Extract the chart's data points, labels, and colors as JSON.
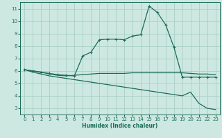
{
  "xlabel": "Humidex (Indice chaleur)",
  "background_color": "#cde8e0",
  "grid_color": "#aacfc5",
  "line_color": "#1a6b58",
  "xlim": [
    -0.5,
    23.5
  ],
  "ylim": [
    2.5,
    11.5
  ],
  "xticks": [
    0,
    1,
    2,
    3,
    4,
    5,
    6,
    7,
    8,
    9,
    10,
    11,
    12,
    13,
    14,
    15,
    16,
    17,
    18,
    19,
    20,
    21,
    22,
    23
  ],
  "yticks": [
    3,
    4,
    5,
    6,
    7,
    8,
    9,
    10,
    11
  ],
  "series": [
    {
      "y": [
        6.1,
        6.0,
        5.9,
        5.8,
        5.7,
        5.65,
        5.6,
        7.2,
        7.5,
        8.5,
        8.55,
        8.55,
        8.5,
        8.8,
        8.9,
        11.2,
        10.7,
        9.7,
        7.9,
        5.5,
        5.5,
        5.5,
        5.5,
        5.5
      ],
      "marker": true
    },
    {
      "y": [
        6.1,
        6.0,
        5.9,
        5.75,
        5.65,
        5.6,
        5.65,
        5.7,
        5.75,
        5.8,
        5.8,
        5.8,
        5.8,
        5.85,
        5.85,
        5.85,
        5.85,
        5.85,
        5.85,
        5.85,
        5.8,
        5.75,
        5.75,
        5.7
      ],
      "marker": false
    },
    {
      "y": [
        6.1,
        5.9,
        5.75,
        5.6,
        5.5,
        5.4,
        5.3,
        5.2,
        5.1,
        5.0,
        4.9,
        4.8,
        4.7,
        4.6,
        4.5,
        4.4,
        4.3,
        4.2,
        4.1,
        4.0,
        4.3,
        3.4,
        3.0,
        2.9
      ],
      "marker": false
    }
  ]
}
